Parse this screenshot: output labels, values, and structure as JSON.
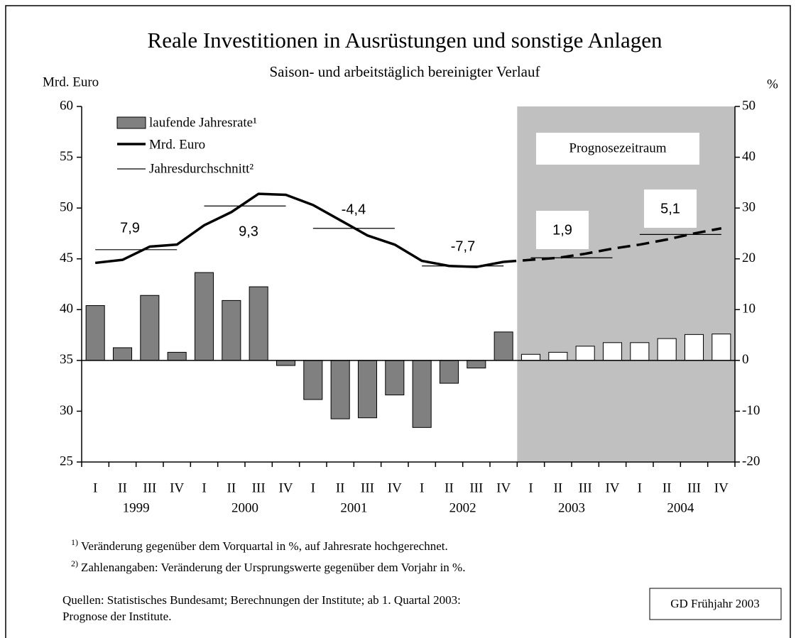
{
  "chart_data": {
    "type": "combo",
    "title": "Reale Investitionen in Ausrüstungen und sonstige Anlagen",
    "subtitle": "Saison- und arbeitstäglich bereinigter Verlauf",
    "y_label": "Mrd. Euro",
    "y2_label": "%",
    "categories": [
      "I",
      "II",
      "III",
      "IV",
      "I",
      "II",
      "III",
      "IV",
      "I",
      "II",
      "III",
      "IV",
      "I",
      "II",
      "III",
      "IV",
      "I",
      "II",
      "III",
      "IV",
      "I",
      "II",
      "III",
      "IV"
    ],
    "groups": [
      "1999",
      "2000",
      "2001",
      "2002",
      "2003",
      "2004"
    ],
    "ylim": [
      25,
      60
    ],
    "yticks": [
      25,
      30,
      35,
      40,
      45,
      50,
      55,
      60
    ],
    "y2lim": [
      -20,
      50
    ],
    "y2ticks": [
      -20,
      -10,
      0,
      10,
      20,
      30,
      40,
      50
    ],
    "series": [
      {
        "name": "laufende Jahresrate¹",
        "type": "bar",
        "axis": "y2",
        "color": "#808080",
        "values": [
          10.8,
          2.5,
          12.8,
          1.6,
          17.3,
          11.8,
          14.5,
          -1.0,
          -7.7,
          -11.5,
          -11.3,
          -6.8,
          -13.2,
          -4.5,
          -1.5,
          5.6,
          null,
          null,
          null,
          null,
          null,
          null,
          null,
          null
        ]
      },
      {
        "type": "bar",
        "axis": "y2",
        "color": "#ffffff",
        "values": [
          null,
          null,
          null,
          null,
          null,
          null,
          null,
          null,
          null,
          null,
          null,
          null,
          null,
          null,
          null,
          null,
          1.2,
          1.6,
          2.8,
          3.5,
          3.5,
          4.3,
          5.1,
          5.2
        ]
      },
      {
        "name": "Mrd. Euro",
        "type": "line",
        "color": "#000000",
        "values": [
          44.6,
          44.9,
          46.2,
          46.4,
          48.3,
          49.6,
          51.4,
          51.3,
          50.3,
          48.8,
          47.3,
          46.4,
          44.8,
          44.3,
          44.2,
          44.7,
          null,
          null,
          null,
          null,
          null,
          null,
          null,
          null
        ]
      },
      {
        "type": "line",
        "dashed": true,
        "color": "#000000",
        "values": [
          null,
          null,
          null,
          null,
          null,
          null,
          null,
          null,
          null,
          null,
          null,
          null,
          null,
          null,
          null,
          44.7,
          44.9,
          45.1,
          45.5,
          46.0,
          46.4,
          46.9,
          47.5,
          48.0
        ]
      }
    ],
    "annual_averages": {
      "name": "Jahresdurchschnitt²",
      "values": [
        45.9,
        50.2,
        48.0,
        44.3,
        45.1,
        47.4
      ]
    },
    "annual_changes": {
      "values": [
        7.9,
        9.3,
        -4.4,
        -7.7,
        1.9,
        5.1
      ],
      "value_labels": [
        "7,9",
        "9,3",
        "-4,4",
        "-7,7",
        "1,9",
        "5,1"
      ]
    },
    "forecast_label": "Prognosezeitraum",
    "footnotes": [
      {
        "marker": "1)",
        "text": "Veränderung gegenüber dem Vorquartal in %, auf Jahresrate hochgerechnet."
      },
      {
        "marker": "2)",
        "text": "Zahlenangaben: Veränderung der Ursprungswerte gegenüber dem Vorjahr in %."
      }
    ],
    "source": [
      "Quellen: Statistisches Bundesamt; Berechnungen der Institute; ab 1. Quartal 2003:",
      "Prognose der Institute."
    ],
    "edition": "GD Frühjahr 2003"
  }
}
